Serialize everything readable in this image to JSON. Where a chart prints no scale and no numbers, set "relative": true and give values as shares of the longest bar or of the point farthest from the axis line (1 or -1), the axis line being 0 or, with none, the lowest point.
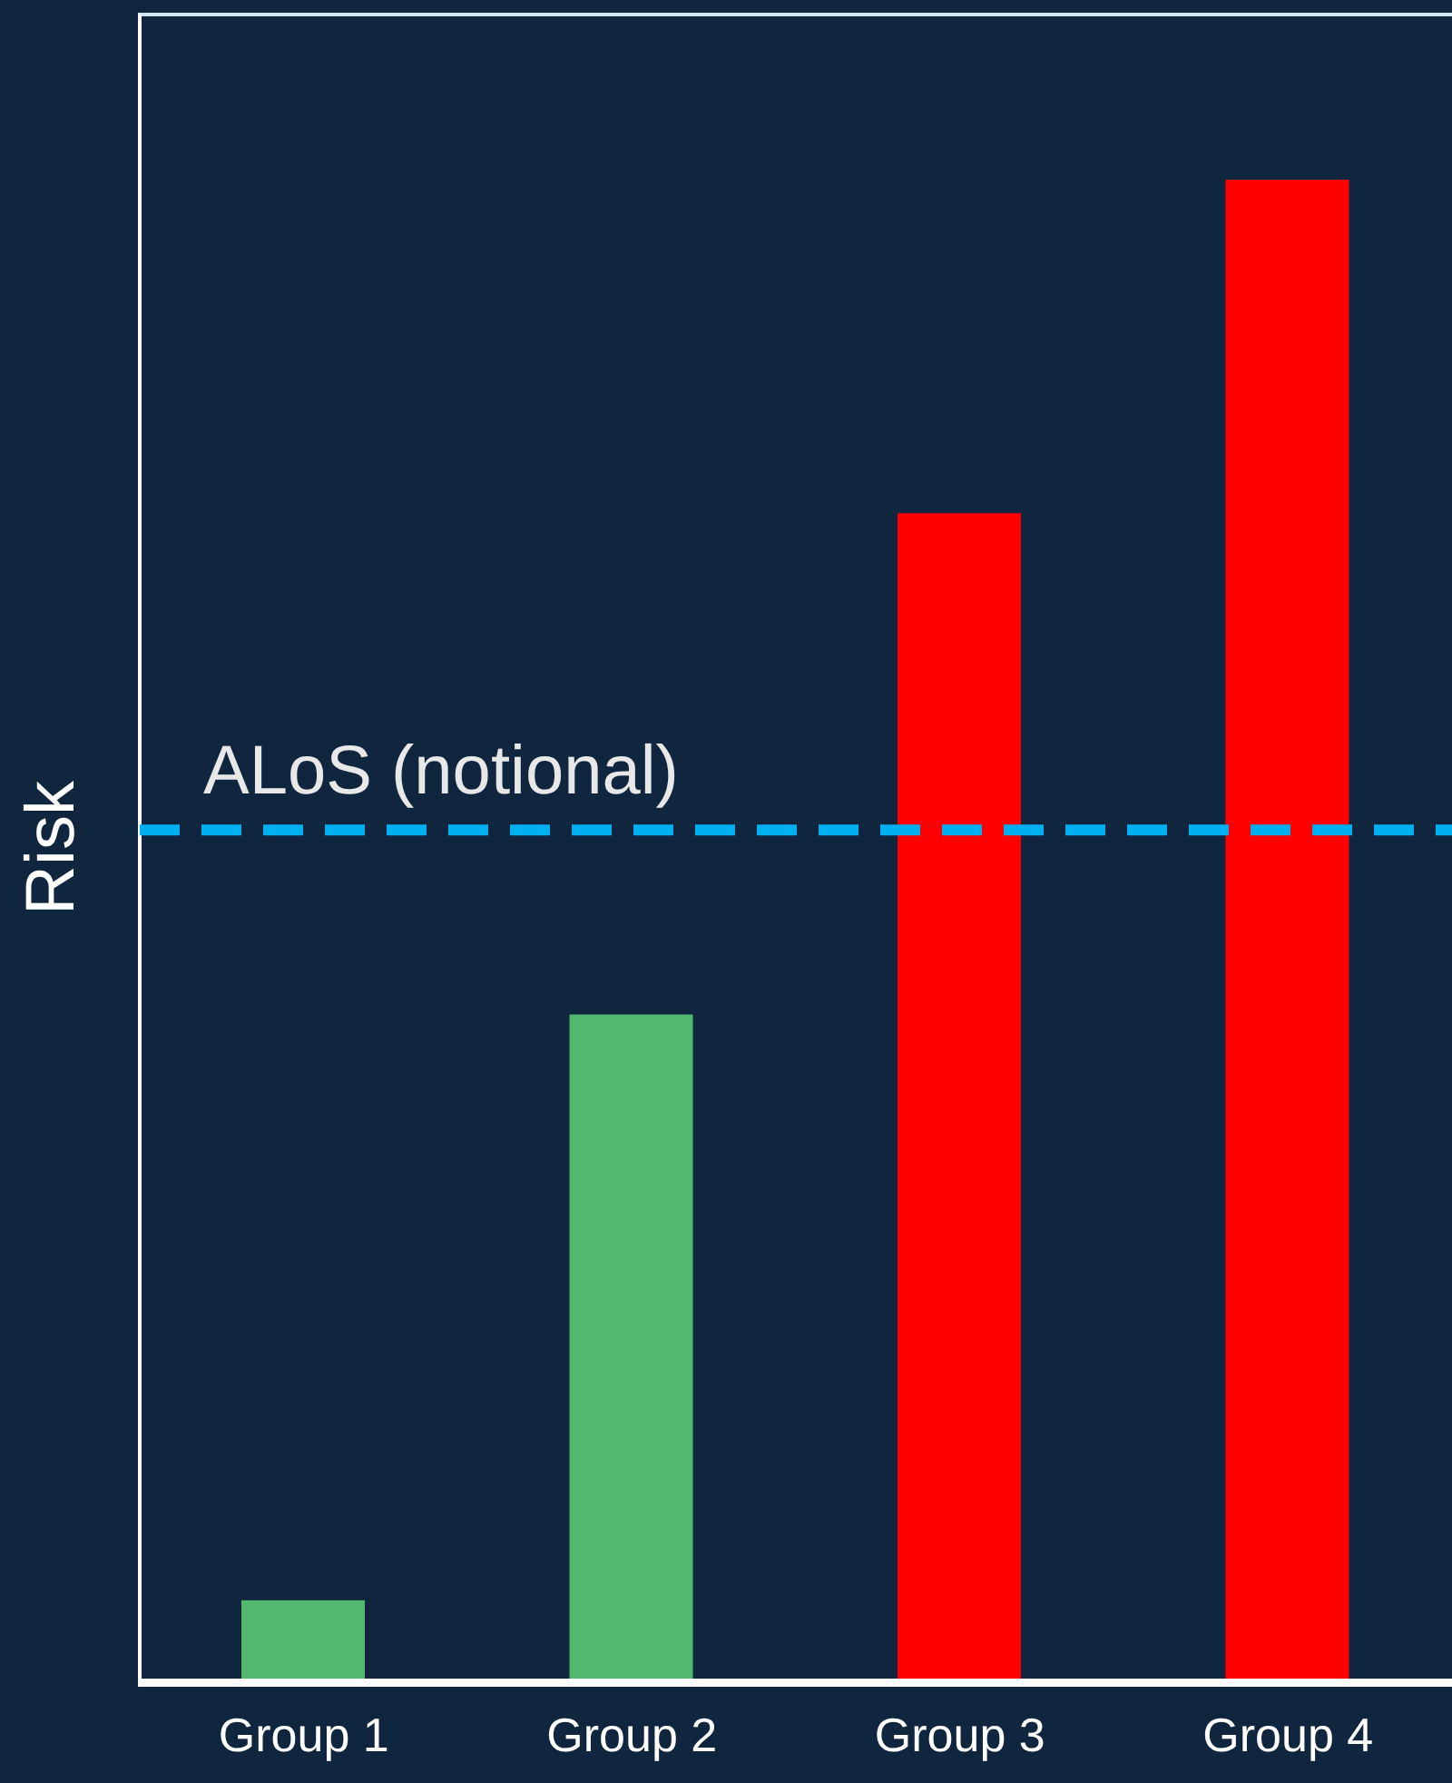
{
  "chart_data": {
    "type": "bar",
    "relative": true,
    "ylabel": "Risk",
    "categories": [
      "Group 1",
      "Group 2",
      "Group 3",
      "Group 4"
    ],
    "values": [
      0.054,
      0.444,
      0.778,
      1
    ],
    "colors": [
      "#52b86e",
      "#52b86e",
      "#ff0000",
      "#ff0000"
    ],
    "ref_lines": [
      {
        "axis": "y",
        "value": 0.567,
        "label": "ALoS (notional)",
        "color": "#00b0f0",
        "line_style": "dashed"
      }
    ],
    "grid": false
  }
}
